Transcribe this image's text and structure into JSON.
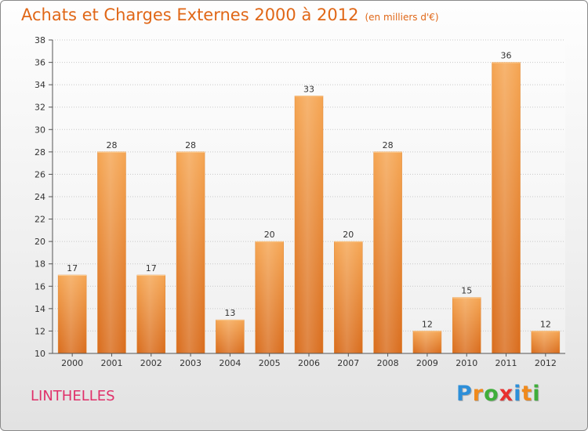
{
  "chart_data": {
    "type": "bar",
    "title": "Achats et Charges Externes 2000 à 2012",
    "unit_label": "(en milliers d'€)",
    "categories": [
      "2000",
      "2001",
      "2002",
      "2003",
      "2004",
      "2005",
      "2006",
      "2007",
      "2008",
      "2009",
      "2010",
      "2011",
      "2012"
    ],
    "values": [
      17,
      28,
      17,
      28,
      13,
      20,
      33,
      20,
      28,
      12,
      15,
      36,
      12
    ],
    "ylim": [
      10,
      38
    ],
    "yticks": [
      10,
      12,
      14,
      16,
      18,
      20,
      22,
      24,
      26,
      28,
      30,
      32,
      34,
      36,
      38
    ],
    "grid": true,
    "xlabel": "",
    "ylabel": ""
  },
  "commune": "LINTHELLES",
  "logo": {
    "letters": [
      "P",
      "r",
      "o",
      "x",
      "i",
      "t",
      "i"
    ],
    "colors": [
      "#2d8fd9",
      "#f08a1c",
      "#3fae3a",
      "#e8302e",
      "#2d8fd9",
      "#f08a1c",
      "#3fae3a"
    ]
  },
  "colors": {
    "title": "#e06717",
    "commune": "#e0306a",
    "bar_top": "#f5a552",
    "bar_bottom": "#d96c1c"
  }
}
